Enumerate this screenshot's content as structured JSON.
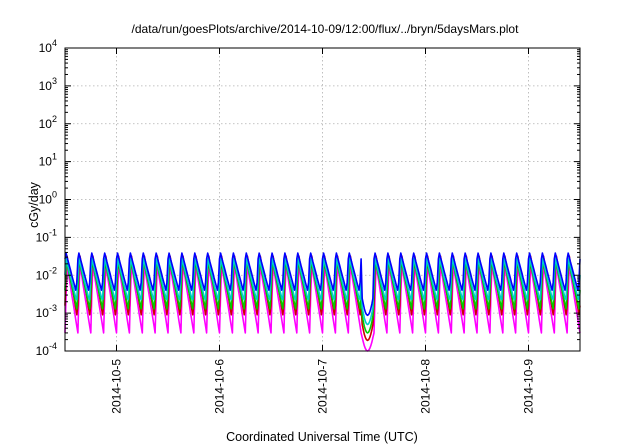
{
  "chart_data": {
    "type": "line",
    "title": "/data/run/goesPlots/archive/2014-10-09/12:00/flux/../bryn/5daysMars.plot",
    "xlabel": "Coordinated Universal Time (UTC)",
    "ylabel": "cGy/day",
    "yscale": "log",
    "ylim": [
      0.0001,
      10000
    ],
    "y_ticks": [
      {
        "base": "10",
        "exp": "-4",
        "value": 0.0001
      },
      {
        "base": "10",
        "exp": "-3",
        "value": 0.001
      },
      {
        "base": "10",
        "exp": "-2",
        "value": 0.01
      },
      {
        "base": "10",
        "exp": "-1",
        "value": 0.1
      },
      {
        "base": "10",
        "exp": "0",
        "value": 1
      },
      {
        "base": "10",
        "exp": "1",
        "value": 10
      },
      {
        "base": "10",
        "exp": "2",
        "value": 100
      },
      {
        "base": "10",
        "exp": "3",
        "value": 1000
      },
      {
        "base": "10",
        "exp": "4",
        "value": 10000
      }
    ],
    "xlim": [
      "2014-10-04T12:00",
      "2014-10-09T12:00"
    ],
    "x_ticks": [
      "2014-10-5",
      "2014-10-6",
      "2014-10-7",
      "2014-10-8",
      "2014-10-9"
    ],
    "x_tick_values": [
      "2014-10-05T00:00",
      "2014-10-06T00:00",
      "2014-10-07T00:00",
      "2014-10-08T00:00",
      "2014-10-09T00:00"
    ],
    "grid": true,
    "series_colors": [
      "#ff00ff",
      "#cc0000",
      "#00cc00",
      "#00cccc",
      "#0000ff"
    ],
    "series": [
      {
        "color": "#ff00ff",
        "peak": 0.02,
        "trough": 0.0003
      },
      {
        "color": "#cc0000",
        "peak": 0.04,
        "trough": 0.0007
      },
      {
        "color": "#00cc00",
        "peak": 0.025,
        "trough": 0.0012
      },
      {
        "color": "#00cccc",
        "peak": 0.03,
        "trough": 0.002
      },
      {
        "color": "#0000ff",
        "peak": 0.045,
        "trough": 0.0035
      }
    ],
    "oscillation_period_hours": 3,
    "dip": {
      "start": "2014-10-07T09:00",
      "end": "2014-10-07T12:00",
      "min_value": 0.0001,
      "floor_blue": 0.0009
    }
  }
}
